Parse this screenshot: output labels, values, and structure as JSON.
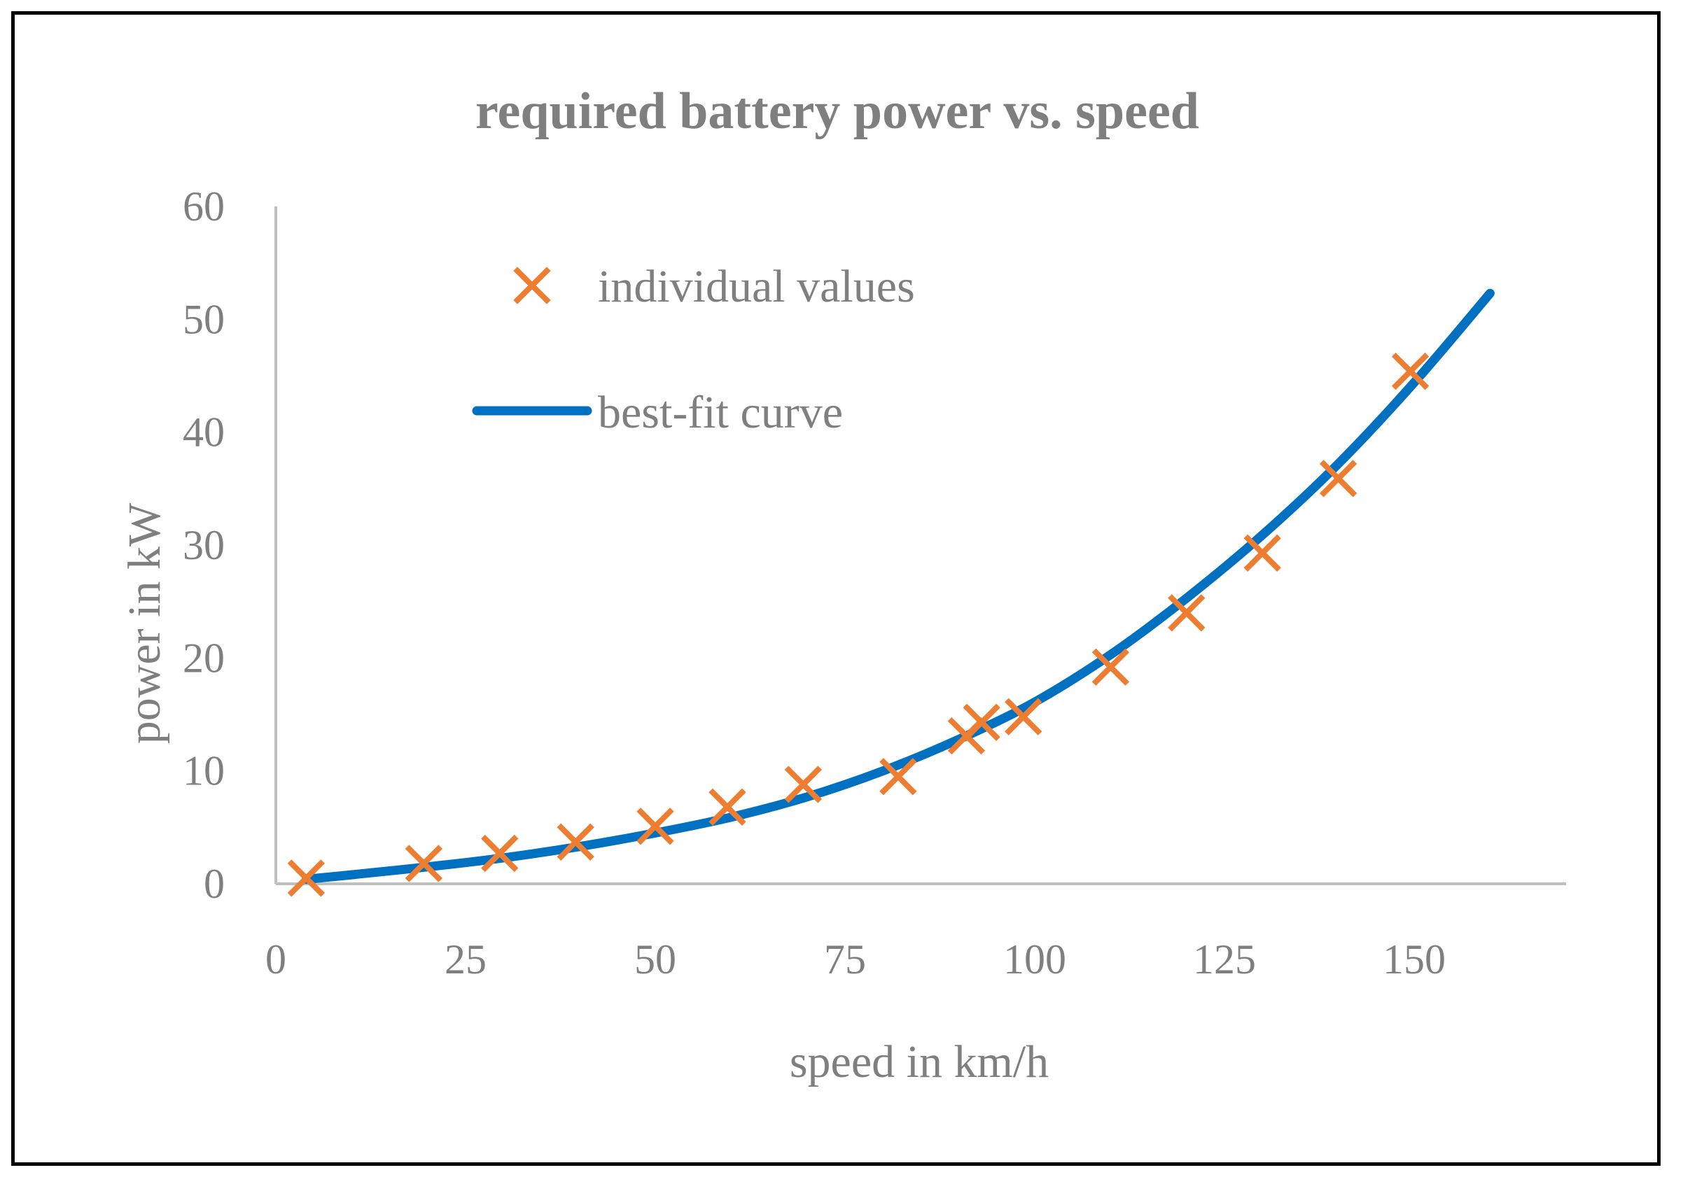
{
  "chart_data": {
    "type": "scatter",
    "title": "required battery power vs. speed",
    "xlabel": "speed in km/h",
    "ylabel": "power in kW",
    "xlim": [
      0,
      170
    ],
    "ylim": [
      0,
      60
    ],
    "xticks": [
      "0",
      "25",
      "50",
      "75",
      "100",
      "125",
      "150"
    ],
    "yticks": [
      "0",
      "10",
      "20",
      "30",
      "40",
      "50",
      "60"
    ],
    "grid": false,
    "legend_position": "top-left",
    "colors": {
      "points": "#ed7d31",
      "curve": "#0070c0",
      "axis": "#bfbfbf",
      "text": "#7f7f7f"
    },
    "series": [
      {
        "name": "individual values",
        "kind": "scatter",
        "marker": "x",
        "x": [
          4,
          19.5,
          29.5,
          39.5,
          50,
          59.5,
          69.5,
          82,
          91,
          93,
          98.5,
          110,
          120,
          130,
          140,
          149.5
        ],
        "y": [
          0.5,
          1.8,
          2.7,
          3.7,
          5.1,
          6.8,
          8.8,
          9.5,
          13.1,
          14.3,
          14.8,
          19.2,
          24,
          29.3,
          35.9,
          45.4
        ]
      },
      {
        "name": "best-fit curve",
        "kind": "line",
        "x": [
          4,
          10,
          20,
          30,
          40,
          50,
          60,
          70,
          80,
          90,
          100,
          110,
          120,
          130,
          140,
          150,
          160
        ],
        "y": [
          0.4,
          0.8,
          1.5,
          2.3,
          3.3,
          4.5,
          5.9,
          7.7,
          10.0,
          12.8,
          16.1,
          20.3,
          25.3,
          30.9,
          37.2,
          44.4,
          52.3
        ]
      }
    ]
  }
}
